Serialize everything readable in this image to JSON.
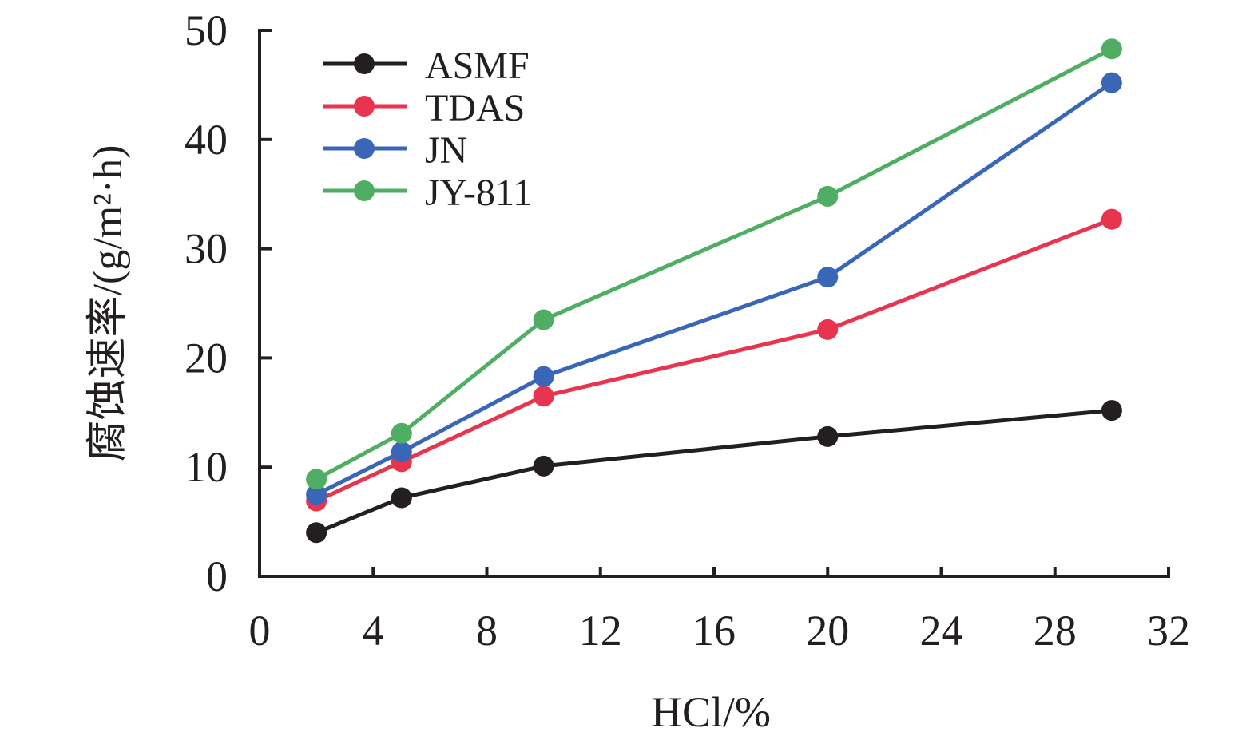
{
  "chart_data": {
    "type": "line",
    "xlabel": "HCl/%",
    "ylabel": "腐蚀速率/(g/m²·h)",
    "xlim": [
      0,
      32
    ],
    "ylim": [
      0,
      50
    ],
    "x_ticks": [
      "0",
      "4",
      "8",
      "12",
      "16",
      "20",
      "24",
      "28",
      "32"
    ],
    "y_ticks": [
      "0",
      "10",
      "20",
      "30",
      "40",
      "50"
    ],
    "x": [
      2,
      5,
      10,
      20,
      30
    ],
    "legend_position": "top-left",
    "grid": false,
    "series": [
      {
        "name": "ASMF",
        "color": "#231f20",
        "values": [
          4.0,
          7.2,
          10.1,
          12.8,
          15.2
        ]
      },
      {
        "name": "TDAS",
        "color": "#e8344e",
        "values": [
          6.9,
          10.5,
          16.5,
          22.6,
          32.7
        ]
      },
      {
        "name": "JN",
        "color": "#3a66b8",
        "values": [
          7.5,
          11.4,
          18.3,
          27.4,
          45.2
        ]
      },
      {
        "name": "JY-811",
        "color": "#4fae63",
        "values": [
          8.9,
          13.1,
          23.5,
          34.8,
          48.3
        ]
      }
    ]
  }
}
